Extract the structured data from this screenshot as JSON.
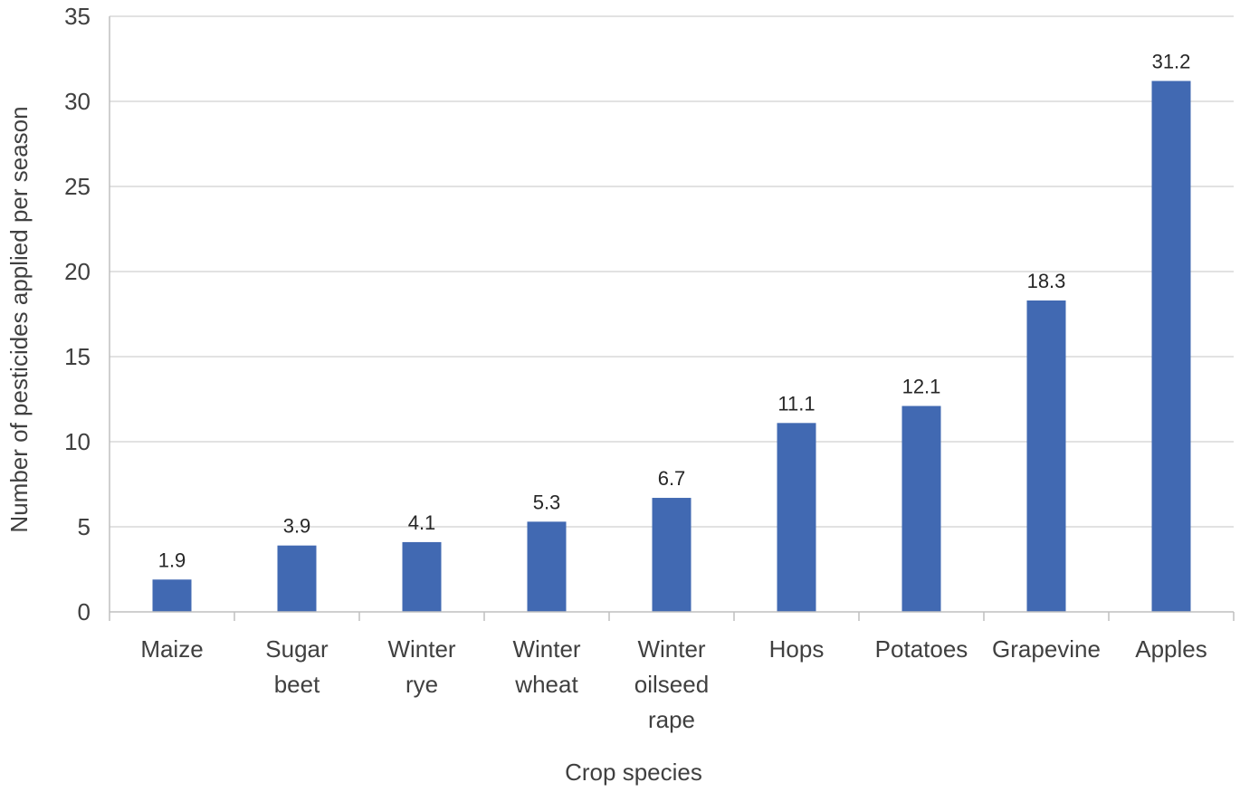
{
  "chart_data": {
    "type": "bar",
    "title": "",
    "xlabel": "Crop species",
    "ylabel": "Number of pesticides applied per season",
    "categories": [
      [
        "Maize"
      ],
      [
        "Sugar",
        "beet"
      ],
      [
        "Winter",
        "rye"
      ],
      [
        "Winter",
        "wheat"
      ],
      [
        "Winter",
        "oilseed",
        "rape"
      ],
      [
        "Hops"
      ],
      [
        "Potatoes"
      ],
      [
        "Grapevine"
      ],
      [
        "Apples"
      ]
    ],
    "values": [
      1.9,
      3.9,
      4.1,
      5.3,
      6.7,
      11.1,
      12.1,
      18.3,
      31.2
    ],
    "data_labels": [
      "1.9",
      "3.9",
      "4.1",
      "5.3",
      "6.7",
      "11.1",
      "12.1",
      "18.3",
      "31.2"
    ],
    "ylim": [
      0,
      35
    ],
    "yticks": [
      0,
      5,
      10,
      15,
      20,
      25,
      30,
      35
    ],
    "grid": true,
    "legend": "none",
    "colors": {
      "bar": "#4169b2"
    }
  }
}
